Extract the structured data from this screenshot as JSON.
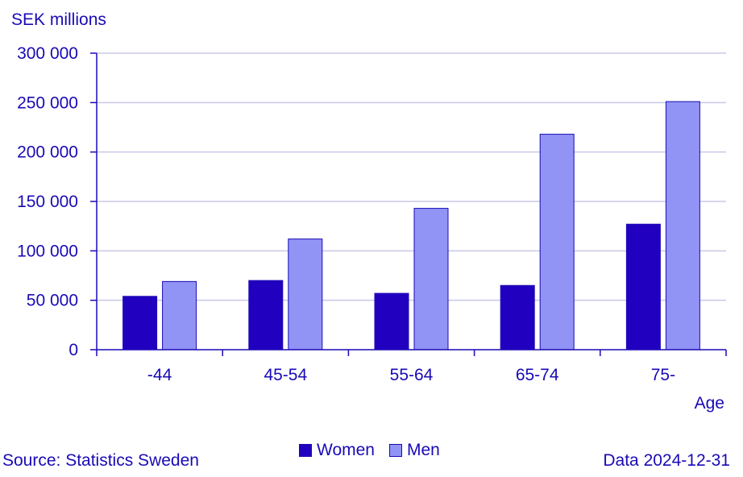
{
  "chart_data": {
    "type": "bar",
    "ylabel": "SEK millions",
    "xlabel": "Age",
    "categories": [
      "-44",
      "45-54",
      "55-64",
      "65-74",
      "75-"
    ],
    "series": [
      {
        "name": "Women",
        "color": "#2200c0",
        "values": [
          54000,
          70000,
          57000,
          65000,
          127000
        ]
      },
      {
        "name": "Men",
        "color": "#9194f5",
        "values": [
          69000,
          112000,
          143000,
          218000,
          251000
        ]
      }
    ],
    "ylim": [
      0,
      300000
    ],
    "yticks": [
      0,
      50000,
      100000,
      150000,
      200000,
      250000,
      300000
    ],
    "ytick_labels": [
      "0",
      "50 000",
      "100 000",
      "150 000",
      "200 000",
      "250 000",
      "300 000"
    ],
    "grid": true,
    "legend_position": "bottom-center"
  },
  "footer": {
    "source": "Source: Statistics Sweden",
    "date": "Data 2024-12-31"
  },
  "colors": {
    "axis": "#1a0ab5",
    "grid": "#c8c8e6",
    "text": "#1a0ab5"
  }
}
